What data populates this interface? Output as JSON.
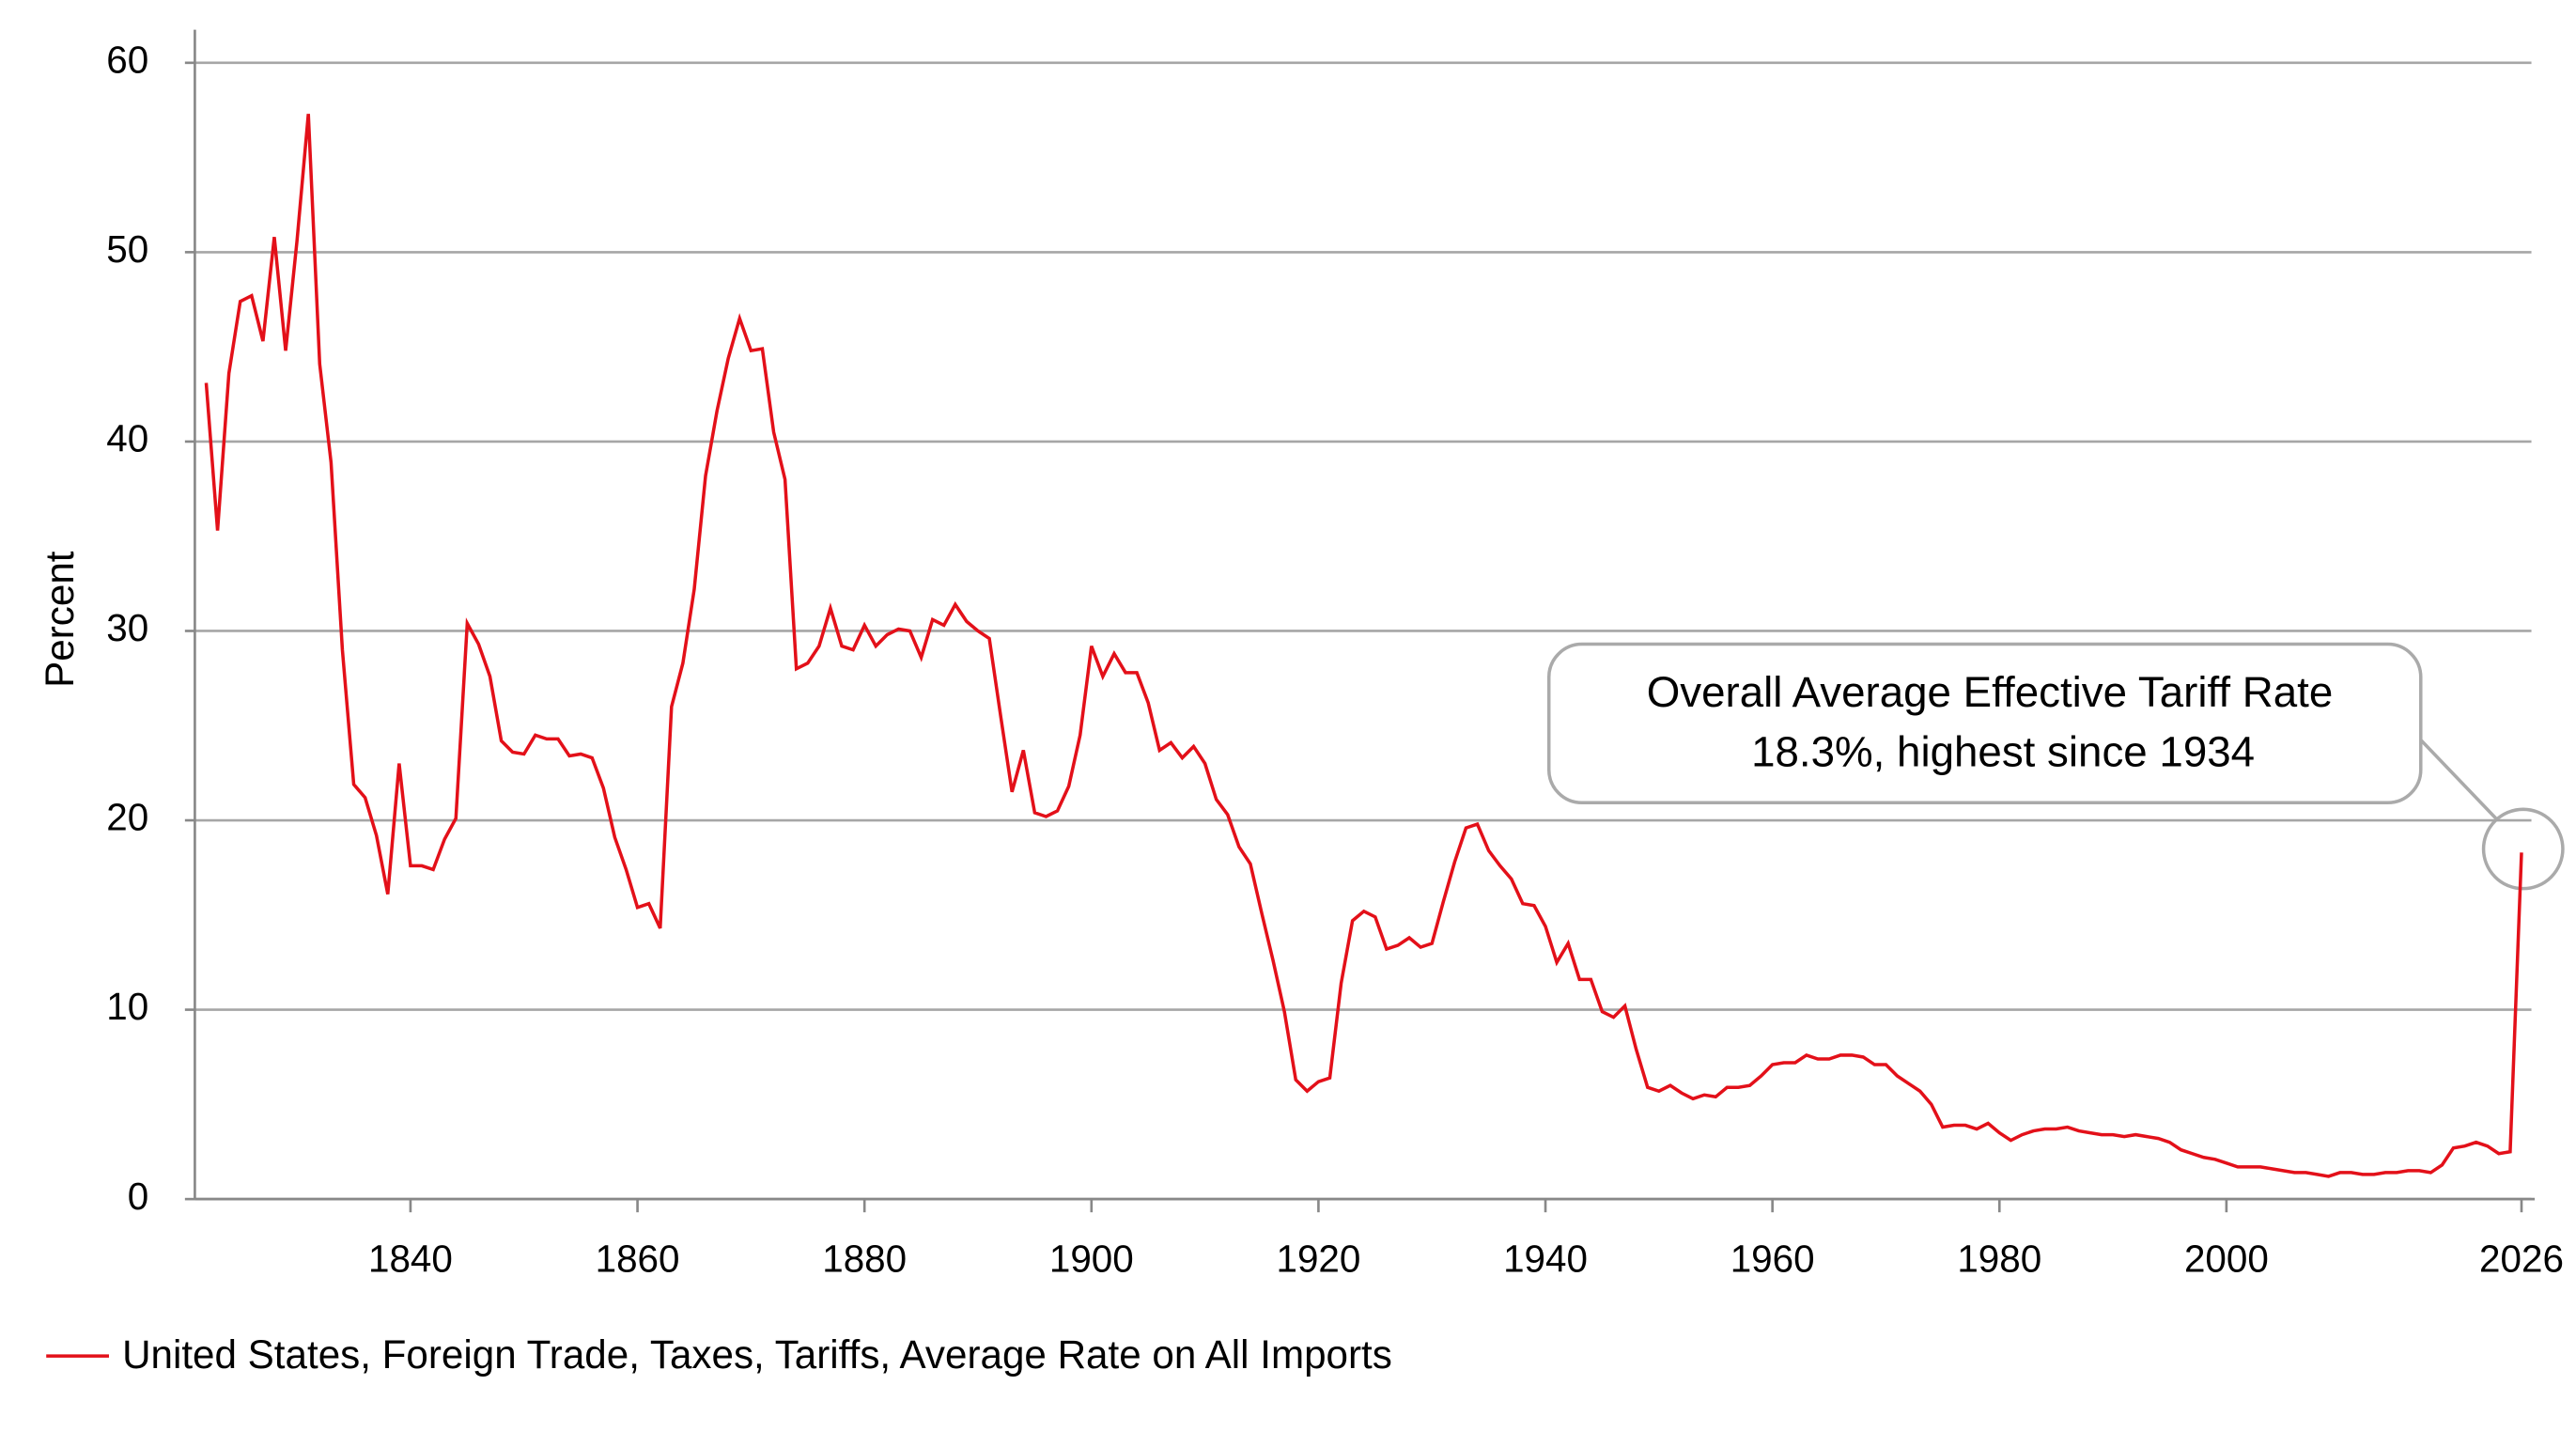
{
  "chart_data": {
    "type": "line",
    "ylabel": "Percent",
    "annotation": [
      "Overall Average Effective Tariff Rate",
      "18.3%, highest since 1934"
    ],
    "x": [
      1822,
      1823,
      1824,
      1825,
      1826,
      1827,
      1828,
      1829,
      1830,
      1831,
      1832,
      1833,
      1834,
      1835,
      1836,
      1837,
      1838,
      1839,
      1840,
      1841,
      1842,
      1843,
      1844,
      1845,
      1846,
      1847,
      1848,
      1849,
      1850,
      1851,
      1852,
      1853,
      1854,
      1855,
      1856,
      1857,
      1858,
      1859,
      1860,
      1861,
      1862,
      1863,
      1864,
      1865,
      1866,
      1867,
      1868,
      1869,
      1870,
      1871,
      1872,
      1873,
      1874,
      1875,
      1876,
      1877,
      1878,
      1879,
      1880,
      1881,
      1882,
      1883,
      1884,
      1885,
      1886,
      1887,
      1888,
      1889,
      1890,
      1891,
      1892,
      1893,
      1894,
      1895,
      1896,
      1897,
      1898,
      1899,
      1900,
      1901,
      1902,
      1903,
      1904,
      1905,
      1906,
      1907,
      1908,
      1909,
      1910,
      1911,
      1912,
      1913,
      1914,
      1915,
      1916,
      1917,
      1918,
      1919,
      1920,
      1921,
      1922,
      1923,
      1924,
      1925,
      1926,
      1927,
      1928,
      1929,
      1930,
      1931,
      1932,
      1933,
      1934,
      1935,
      1936,
      1937,
      1938,
      1939,
      1940,
      1941,
      1942,
      1943,
      1944,
      1945,
      1946,
      1947,
      1948,
      1949,
      1950,
      1951,
      1952,
      1953,
      1954,
      1955,
      1956,
      1957,
      1958,
      1959,
      1960,
      1961,
      1962,
      1963,
      1964,
      1965,
      1966,
      1967,
      1968,
      1969,
      1970,
      1971,
      1972,
      1973,
      1974,
      1975,
      1976,
      1977,
      1978,
      1979,
      1980,
      1981,
      1982,
      1983,
      1984,
      1985,
      1986,
      1987,
      1988,
      1989,
      1990,
      1991,
      1992,
      1993,
      1994,
      1995,
      1996,
      1997,
      1998,
      1999,
      2000,
      2001,
      2002,
      2003,
      2004,
      2005,
      2006,
      2007,
      2008,
      2009,
      2010,
      2011,
      2012,
      2013,
      2014,
      2015,
      2016,
      2017,
      2018,
      2019,
      2020,
      2021,
      2022,
      2023,
      2024,
      2025,
      2026
    ],
    "series": [
      {
        "name": "United States, Foreign Trade, Taxes, Tariffs, Average Rate on All Imports",
        "color": "#e31019",
        "values": [
          43.1,
          35.3,
          43.6,
          47.4,
          47.7,
          45.3,
          50.8,
          44.8,
          50.6,
          57.3,
          44.1,
          38.9,
          29.0,
          21.9,
          21.2,
          19.2,
          16.1,
          23.0,
          17.6,
          17.6,
          17.4,
          19.0,
          20.1,
          30.4,
          29.3,
          27.6,
          24.2,
          23.6,
          23.5,
          24.5,
          24.3,
          24.3,
          23.4,
          23.5,
          23.3,
          21.7,
          19.1,
          17.4,
          15.4,
          15.6,
          14.3,
          26.0,
          28.3,
          32.2,
          38.2,
          41.6,
          44.4,
          46.5,
          44.8,
          44.9,
          40.5,
          38.0,
          28.0,
          28.3,
          29.2,
          31.2,
          29.2,
          29.0,
          30.3,
          29.2,
          29.8,
          30.1,
          30.0,
          28.6,
          30.6,
          30.3,
          31.4,
          30.5,
          30.0,
          29.6,
          25.5,
          21.5,
          23.7,
          20.4,
          20.2,
          20.5,
          21.8,
          24.5,
          29.2,
          27.6,
          28.8,
          27.8,
          27.8,
          26.2,
          23.7,
          24.1,
          23.3,
          23.9,
          23.0,
          21.1,
          20.3,
          18.6,
          17.7,
          15.1,
          12.6,
          9.9,
          6.3,
          5.7,
          6.2,
          6.4,
          11.4,
          14.7,
          15.2,
          14.9,
          13.2,
          13.4,
          13.8,
          13.3,
          13.5,
          15.7,
          17.8,
          19.6,
          19.8,
          18.4,
          17.6,
          16.9,
          15.6,
          15.5,
          14.4,
          12.5,
          13.5,
          11.6,
          11.6,
          9.9,
          9.6,
          10.2,
          7.9,
          5.9,
          5.7,
          6.0,
          5.6,
          5.3,
          5.5,
          5.4,
          5.9,
          5.9,
          6.0,
          6.5,
          7.1,
          7.2,
          7.2,
          7.6,
          7.4,
          7.4,
          7.6,
          7.6,
          7.5,
          7.1,
          7.1,
          6.5,
          6.1,
          5.7,
          5.0,
          3.8,
          3.9,
          3.9,
          3.7,
          4.0,
          3.5,
          3.1,
          3.4,
          3.6,
          3.7,
          3.7,
          3.8,
          3.6,
          3.5,
          3.4,
          3.4,
          3.3,
          3.4,
          3.3,
          3.2,
          3.0,
          2.6,
          2.4,
          2.2,
          2.1,
          1.9,
          1.7,
          1.7,
          1.7,
          1.6,
          1.5,
          1.4,
          1.4,
          1.3,
          1.2,
          1.4,
          1.4,
          1.3,
          1.3,
          1.4,
          1.4,
          1.5,
          1.5,
          1.4,
          1.8,
          2.7,
          2.8,
          3.0,
          2.8,
          2.4,
          2.5,
          18.3
        ]
      }
    ],
    "xlim": [
      1821,
      2026
    ],
    "xticks": [
      1840,
      1860,
      1880,
      1900,
      1920,
      1940,
      1960,
      1980,
      2000,
      2026
    ],
    "ylim": [
      0,
      60
    ],
    "yticks": [
      0,
      10,
      20,
      30,
      40,
      50,
      60
    ],
    "grid": true
  }
}
